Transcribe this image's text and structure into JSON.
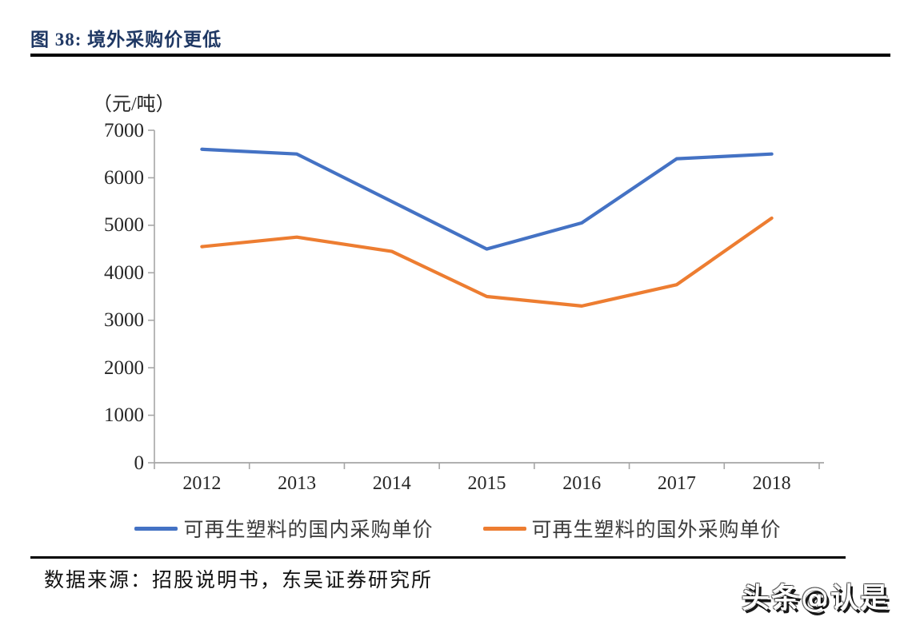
{
  "figure": {
    "title": "图 38:  境外采购价更低"
  },
  "chart_data": {
    "type": "line",
    "title": "境外采购价更低",
    "unit_label": "（元/吨）",
    "categories": [
      "2012",
      "2013",
      "2014",
      "2015",
      "2016",
      "2017",
      "2018"
    ],
    "series": [
      {
        "name": "可再生塑料的国内采购单价",
        "color": "#4472C4",
        "values": [
          6600,
          6500,
          5500,
          4500,
          5050,
          6400,
          6500
        ]
      },
      {
        "name": "可再生塑料的国外采购单价",
        "color": "#ED7D31",
        "values": [
          4550,
          4750,
          4450,
          3500,
          3300,
          3750,
          5150
        ]
      }
    ],
    "xlabel": "",
    "ylabel": "（元/吨）",
    "ylim": [
      0,
      7000
    ],
    "yticks": [
      0,
      1000,
      2000,
      3000,
      4000,
      5000,
      6000,
      7000
    ],
    "grid": false,
    "legend_position": "bottom"
  },
  "footer": {
    "source": "数据来源：招股说明书，东吴证券研究所",
    "watermark": "头条@认是"
  },
  "colors": {
    "title": "#1F3864",
    "rule": "#000000",
    "axis": "#A6A6A6",
    "tick_text": "#262626",
    "series_domestic": "#4472C4",
    "series_foreign": "#ED7D31"
  }
}
